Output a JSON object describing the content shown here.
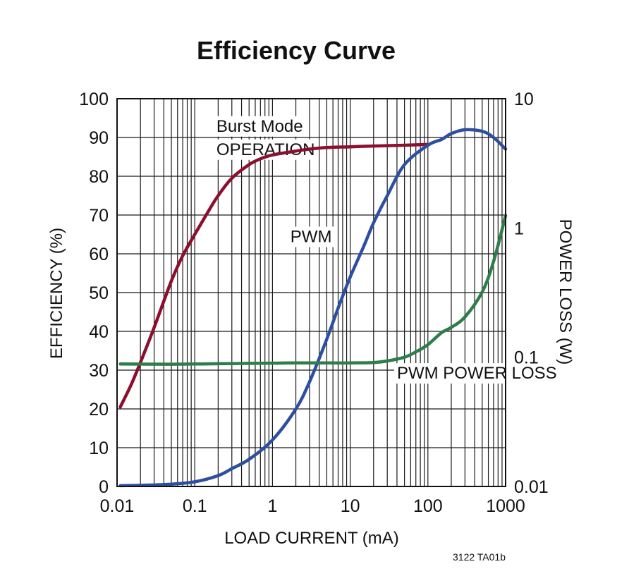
{
  "chart_data": {
    "type": "line",
    "title": "Efficiency Curve",
    "xlabel": "LOAD CURRENT (mA)",
    "ylabel": "EFFICIENCY (%)",
    "y2label": "POWER LOSS (W)",
    "xscale": "log",
    "xlim": [
      0.01,
      1000
    ],
    "ylim": [
      0,
      100
    ],
    "y2scale": "log",
    "y2lim": [
      0.01,
      10
    ],
    "grid": true,
    "x_ticks": [
      "0.01",
      "0.1",
      "1",
      "10",
      "100",
      "1000"
    ],
    "y_ticks": [
      "0",
      "10",
      "20",
      "30",
      "40",
      "50",
      "60",
      "70",
      "80",
      "90",
      "100"
    ],
    "y2_ticks": [
      "0.01",
      "0.1",
      "1",
      "10"
    ],
    "series": [
      {
        "name": "Burst Mode OPERATION",
        "axis": "left",
        "color": "#8b0f2e",
        "x": [
          0.011,
          0.015,
          0.02,
          0.03,
          0.05,
          0.07,
          0.1,
          0.15,
          0.2,
          0.3,
          0.5,
          0.7,
          1,
          2,
          3,
          5,
          10,
          20,
          30,
          50,
          100
        ],
        "y": [
          20.5,
          26,
          32,
          41,
          53,
          59.5,
          65,
          71,
          75,
          79.5,
          83,
          84.5,
          85.5,
          86.5,
          87,
          87.4,
          87.6,
          87.8,
          87.9,
          88,
          88.2
        ]
      },
      {
        "name": "PWM",
        "axis": "left",
        "color": "#2e4ea0",
        "x": [
          0.011,
          0.02,
          0.05,
          0.1,
          0.2,
          0.3,
          0.5,
          1,
          2,
          3,
          5,
          7,
          10,
          15,
          20,
          30,
          50,
          100,
          150,
          200,
          300,
          500,
          700,
          1000
        ],
        "y": [
          0.2,
          0.3,
          0.6,
          1.2,
          2.8,
          4.6,
          7,
          12,
          20,
          27,
          38,
          46,
          54,
          62,
          68,
          75,
          83,
          88,
          89.5,
          91,
          92,
          91.6,
          90,
          87
        ]
      },
      {
        "name": "PWM POWER LOSS",
        "axis": "right",
        "color": "#2e7d4a",
        "x": [
          0.011,
          0.05,
          0.1,
          0.2,
          0.5,
          1,
          2,
          5,
          10,
          20,
          30,
          50,
          70,
          100,
          150,
          200,
          300,
          500,
          700,
          1000
        ],
        "y": [
          0.0886,
          0.0883,
          0.0886,
          0.089,
          0.0896,
          0.09,
          0.0903,
          0.0903,
          0.0903,
          0.091,
          0.0935,
          0.1,
          0.11,
          0.125,
          0.155,
          0.17,
          0.205,
          0.32,
          0.55,
          1.25
        ]
      }
    ],
    "annotations": [
      {
        "text": "Burst Mode",
        "x": 0.19,
        "y": 91.5
      },
      {
        "text": "OPERATION",
        "x": 0.19,
        "y": 85.5
      },
      {
        "text": "PWM",
        "x": 1.7,
        "y": 63
      },
      {
        "text": "PWM POWER LOSS",
        "x": 40,
        "y": 27.8
      }
    ],
    "footnote": "3122 TA01b"
  }
}
